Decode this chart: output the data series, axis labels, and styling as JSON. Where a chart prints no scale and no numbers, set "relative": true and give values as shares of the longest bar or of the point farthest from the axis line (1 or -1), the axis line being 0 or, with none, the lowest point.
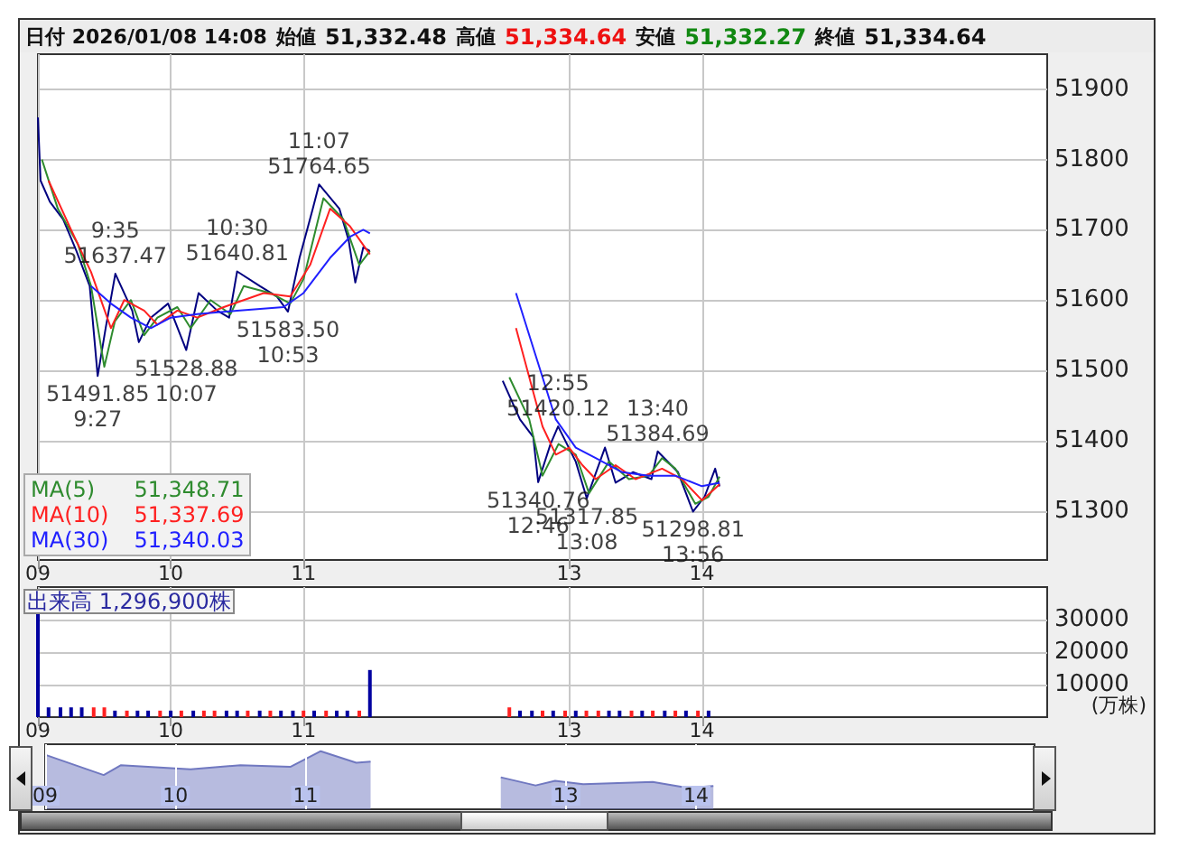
{
  "chart_data": [
    {
      "type": "line",
      "title": "日付 2026/01/08 14:08",
      "xlim": [
        9,
        16.6
      ],
      "xticks": [
        {
          "value": 9,
          "label": "09"
        },
        {
          "value": 10,
          "label": "10"
        },
        {
          "value": 11,
          "label": "11"
        },
        {
          "value": 13,
          "label": "13"
        },
        {
          "value": 14,
          "label": "14"
        }
      ],
      "ylim": [
        51230,
        51950
      ],
      "yticks": [
        51300,
        51400,
        51500,
        51600,
        51700,
        51800,
        51900
      ],
      "grid": true,
      "legend": "bottom left",
      "annotations": [
        "始値 51,332.48",
        "高値 51,334.64",
        "安値 51,332.27",
        "終値 51,334.64",
        "51,348.71",
        "51,337.69",
        "51,340.03",
        {
          "text": "51491.85\n9:27",
          "x": 9.45,
          "y": 51491.85
        },
        {
          "text": "9:35\n51637.47",
          "x": 9.583,
          "y": 51637.47
        },
        {
          "text": "51528.88\n10:07",
          "x": 10.117,
          "y": 51528.88
        },
        {
          "text": "10:30\n51640.81",
          "x": 10.5,
          "y": 51640.81
        },
        {
          "text": "51583.50\n10:53",
          "x": 10.883,
          "y": 51583.5
        },
        {
          "text": "11:07\n51764.65",
          "x": 11.117,
          "y": 51764.65
        },
        {
          "text": "51340.76\n12:46",
          "x": 12.767,
          "y": 51340.76
        },
        {
          "text": "12:55\n51420.12",
          "x": 12.917,
          "y": 51420.12
        },
        {
          "text": "51317.85\n13:08",
          "x": 13.133,
          "y": 51317.85
        },
        {
          "text": "13:40\n51384.69",
          "x": 13.667,
          "y": 51384.69
        },
        {
          "text": "51298.81\n13:56",
          "x": 13.933,
          "y": 51298.81
        }
      ],
      "series": [
        {
          "color": "#000080",
          "x": [
            9,
            9.02,
            9.09,
            9.19,
            9.29,
            9.39,
            9.45,
            9.51,
            9.583,
            9.71,
            9.76,
            9.85,
            9.98,
            10.117,
            10.21,
            10.35,
            10.44,
            10.5,
            10.67,
            10.8,
            10.883,
            10.97,
            11.07,
            11.117,
            11.27,
            11.34,
            11.39,
            11.45,
            11.5,
            12.5,
            12.63,
            12.73,
            12.767,
            12.86,
            12.917,
            13.05,
            13.133,
            13.27,
            13.35,
            13.48,
            13.62,
            13.667,
            13.82,
            13.933,
            14.02,
            14.1,
            14.133
          ],
          "values": [
            51860,
            51770,
            51740,
            51715,
            51670,
            51620,
            51491.85,
            51560,
            51637.47,
            51585,
            51540,
            51575,
            51595,
            51528.88,
            51610,
            51585,
            51575,
            51640.81,
            51620,
            51605,
            51583.5,
            51660,
            51730,
            51764.65,
            51730,
            51685,
            51625,
            51675,
            51670,
            51485,
            51430,
            51405,
            51340.76,
            51395,
            51420.12,
            51370,
            51317.85,
            51390,
            51340,
            51355,
            51345,
            51384.69,
            51355,
            51298.81,
            51320,
            51360,
            51334.64
          ]
        },
        {
          "name": "MA(5)",
          "color": "#2e8b2e",
          "x": [
            9.03,
            9.15,
            9.3,
            9.4,
            9.5,
            9.58,
            9.7,
            9.8,
            9.9,
            10.05,
            10.15,
            10.3,
            10.45,
            10.55,
            10.75,
            10.9,
            11,
            11.15,
            11.3,
            11.42,
            11.5,
            12.55,
            12.7,
            12.8,
            12.92,
            13.05,
            13.15,
            13.3,
            13.45,
            13.6,
            13.7,
            13.8,
            13.95,
            14.05,
            14.133
          ],
          "values": [
            51800,
            51730,
            51680,
            51620,
            51505,
            51570,
            51600,
            51550,
            51575,
            51590,
            51560,
            51600,
            51580,
            51620,
            51610,
            51595,
            51630,
            51745,
            51715,
            51650,
            51670,
            51490,
            51430,
            51350,
            51395,
            51380,
            51325,
            51370,
            51345,
            51350,
            51375,
            51360,
            51310,
            51320,
            51348.71
          ]
        },
        {
          "name": "MA(10)",
          "color": "#ff2020",
          "x": [
            9.08,
            9.25,
            9.4,
            9.55,
            9.65,
            9.8,
            9.9,
            10.05,
            10.2,
            10.4,
            10.55,
            10.7,
            10.9,
            11.05,
            11.2,
            11.35,
            11.5,
            12.6,
            12.8,
            12.9,
            13,
            13.1,
            13.2,
            13.35,
            13.5,
            13.7,
            13.85,
            14,
            14.133
          ],
          "values": [
            51770,
            51700,
            51640,
            51560,
            51600,
            51585,
            51565,
            51585,
            51575,
            51590,
            51600,
            51610,
            51605,
            51650,
            51730,
            51705,
            51665,
            51560,
            51420,
            51380,
            51390,
            51365,
            51345,
            51365,
            51345,
            51360,
            51345,
            51315,
            51337.69
          ]
        },
        {
          "name": "MA(30)",
          "color": "#2020ff",
          "x": [
            9.4,
            9.55,
            9.7,
            9.85,
            10,
            10.2,
            10.5,
            10.85,
            11,
            11.2,
            11.35,
            11.45,
            11.5,
            12.6,
            12.75,
            12.9,
            13.05,
            13.2,
            13.4,
            13.6,
            13.8,
            14,
            14.133
          ],
          "values": [
            51620,
            51595,
            51575,
            51560,
            51575,
            51580,
            51585,
            51590,
            51610,
            51660,
            51690,
            51700,
            51695,
            51610,
            51520,
            51430,
            51390,
            51375,
            51355,
            51350,
            51350,
            51335,
            51340.03
          ]
        }
      ]
    },
    {
      "type": "bar",
      "title": "出来高 1,296,900株",
      "ylabel": "(万株)",
      "xlim": [
        9,
        16.6
      ],
      "xticks": [
        {
          "value": 9,
          "label": "09"
        },
        {
          "value": 10,
          "label": "10"
        },
        {
          "value": 11,
          "label": "11"
        },
        {
          "value": 13,
          "label": "13"
        },
        {
          "value": 14,
          "label": "14"
        }
      ],
      "ylim": [
        0,
        40000
      ],
      "yticks": [
        10000,
        20000,
        30000
      ],
      "grid": true,
      "x": [
        9,
        9.08,
        9.17,
        9.25,
        9.33,
        9.42,
        9.5,
        9.58,
        9.67,
        9.75,
        9.83,
        9.92,
        10,
        10.08,
        10.17,
        10.25,
        10.33,
        10.42,
        10.5,
        10.58,
        10.67,
        10.75,
        10.83,
        10.92,
        11,
        11.08,
        11.17,
        11.25,
        11.33,
        11.42,
        11.5,
        12.55,
        12.63,
        12.72,
        12.8,
        12.88,
        12.97,
        13.05,
        13.13,
        13.22,
        13.3,
        13.38,
        13.47,
        13.55,
        13.63,
        13.72,
        13.8,
        13.88,
        13.97,
        14.05
      ],
      "values": [
        32000,
        3000,
        3000,
        3000,
        3000,
        3000,
        3000,
        2000,
        2000,
        2000,
        2000,
        2000,
        2000,
        2000,
        2000,
        2000,
        2000,
        2000,
        2000,
        2000,
        2000,
        2000,
        2000,
        2000,
        2000,
        2000,
        2000,
        2000,
        2000,
        2000,
        14500,
        3000,
        2000,
        2000,
        2000,
        2000,
        2000,
        2000,
        2000,
        2000,
        2000,
        2000,
        2000,
        2000,
        2000,
        2000,
        2000,
        2000,
        2000,
        2000
      ],
      "colors": [
        "#0000a0",
        "#0000a0",
        "#0000a0",
        "#0000a0",
        "#0000a0",
        "#ff2020",
        "#ff2020",
        "#0000a0",
        "#ff2020",
        "#0000a0",
        "#0000a0",
        "#ff2020",
        "#0000a0",
        "#ff2020",
        "#0000a0",
        "#ff2020",
        "#ff2020",
        "#0000a0",
        "#0000a0",
        "#ff2020",
        "#0000a0",
        "#ff2020",
        "#0000a0",
        "#0000a0",
        "#ff2020",
        "#0000a0",
        "#ff2020",
        "#0000a0",
        "#0000a0",
        "#ff2020",
        "#0000a0",
        "#ff2020",
        "#0000a0",
        "#0000a0",
        "#ff2020",
        "#0000a0",
        "#ff2020",
        "#0000a0",
        "#ff2020",
        "#ff2020",
        "#0000a0",
        "#0000a0",
        "#ff2020",
        "#0000a0",
        "#ff2020",
        "#0000a0",
        "#ff2020",
        "#0000a0",
        "#ff2020",
        "#0000a0"
      ]
    },
    {
      "type": "area",
      "relative": true,
      "color": "#7078c0",
      "grid": "x",
      "xlim": [
        9,
        16.6
      ],
      "xticks": [
        {
          "value": 9,
          "label": "09"
        },
        {
          "value": 10,
          "label": "10"
        },
        {
          "value": 11,
          "label": "11"
        },
        {
          "value": 13,
          "label": "13"
        },
        {
          "value": 14,
          "label": "14"
        }
      ],
      "x": [
        9,
        9.45,
        9.583,
        10.117,
        10.5,
        10.883,
        11.117,
        11.39,
        11.5,
        12.5,
        12.767,
        12.917,
        13.133,
        13.667,
        13.933,
        14.133
      ],
      "values": [
        0.94,
        0.59,
        0.76,
        0.69,
        0.76,
        0.73,
        1,
        0.8,
        0.82,
        0.55,
        0.41,
        0.49,
        0.43,
        0.47,
        0.37,
        0.4
      ]
    }
  ]
}
